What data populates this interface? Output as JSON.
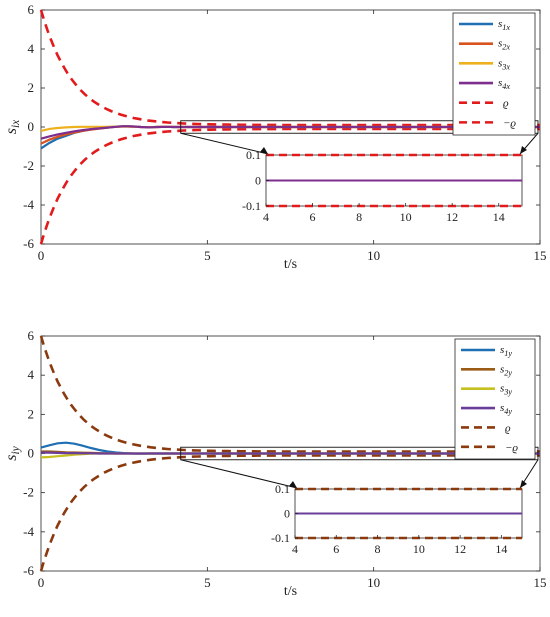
{
  "chart_data": [
    {
      "type": "line",
      "ylabel": "s_ix",
      "xlabel": "t/s",
      "xlim": [
        0,
        15
      ],
      "ylim": [
        -6,
        6
      ],
      "xticks": [
        "0",
        "5",
        "10",
        "15"
      ],
      "yticks": [
        "-6",
        "-4",
        "-2",
        "0",
        "2",
        "4",
        "6"
      ],
      "legend_position": "top-right",
      "x": [
        0,
        0.25,
        0.5,
        0.75,
        1,
        1.25,
        1.5,
        1.75,
        2,
        2.25,
        2.5,
        2.75,
        3,
        3.25,
        3.5,
        3.75,
        4,
        4.5,
        5,
        6,
        8,
        10,
        12,
        15
      ],
      "series": [
        {
          "name": "s1x",
          "values": [
            -1.1,
            -0.82,
            -0.6,
            -0.45,
            -0.3,
            -0.2,
            -0.12,
            -0.06,
            -0.02,
            0.02,
            0.04,
            0.02,
            0.0,
            -0.01,
            0.0,
            0.01,
            0.0,
            0.0,
            0.0,
            0.0,
            0.0,
            0.0,
            0.0,
            0.0
          ],
          "color": "#1f6fb4"
        },
        {
          "name": "s2x",
          "values": [
            -0.85,
            -0.65,
            -0.5,
            -0.38,
            -0.28,
            -0.2,
            -0.14,
            -0.08,
            -0.03,
            0.01,
            0.03,
            0.02,
            0.0,
            -0.01,
            0.0,
            0.01,
            0.0,
            0.0,
            0.0,
            0.0,
            0.0,
            0.0,
            0.0,
            0.0
          ],
          "color": "#d9531e"
        },
        {
          "name": "s3x",
          "values": [
            -0.2,
            -0.1,
            -0.05,
            -0.02,
            0.0,
            0.01,
            0.01,
            0.01,
            0.01,
            0.02,
            0.03,
            0.02,
            0.0,
            -0.01,
            0.0,
            0.01,
            0.0,
            0.0,
            0.0,
            0.0,
            0.0,
            0.0,
            0.0,
            0.0
          ],
          "color": "#edb120"
        },
        {
          "name": "s4x",
          "values": [
            -0.6,
            -0.48,
            -0.38,
            -0.3,
            -0.22,
            -0.16,
            -0.11,
            -0.07,
            -0.03,
            0.01,
            0.04,
            0.03,
            0.0,
            -0.02,
            0.0,
            0.01,
            0.0,
            0.0,
            0.0,
            0.0,
            0.0,
            0.0,
            0.0,
            0.0
          ],
          "color": "#7e2f8e"
        }
      ],
      "bound": {
        "name_upper": "ϱ",
        "name_lower": "−ϱ",
        "rho0": 6,
        "rho_inf": 0.1,
        "decay": 1.0,
        "color": "#e31a1c"
      },
      "inset": {
        "xlim": [
          4,
          15
        ],
        "ylim": [
          -0.1,
          0.1
        ],
        "xticks": [
          "4",
          "6",
          "8",
          "10",
          "12",
          "14"
        ],
        "yticks": [
          "-0.1",
          "0",
          "0.1"
        ],
        "curve_color": "#7e2f8e"
      }
    },
    {
      "type": "line",
      "ylabel": "s_iy",
      "xlabel": "t/s",
      "xlim": [
        0,
        15
      ],
      "ylim": [
        -6,
        6
      ],
      "xticks": [
        "0",
        "5",
        "10",
        "15"
      ],
      "yticks": [
        "-6",
        "-4",
        "-2",
        "0",
        "2",
        "4",
        "6"
      ],
      "legend_position": "top-right",
      "x": [
        0,
        0.25,
        0.5,
        0.75,
        1,
        1.25,
        1.5,
        1.75,
        2,
        2.25,
        2.5,
        2.75,
        3,
        3.25,
        3.5,
        3.75,
        4,
        4.5,
        5,
        6,
        8,
        10,
        12,
        15
      ],
      "series": [
        {
          "name": "s1y",
          "values": [
            0.3,
            0.42,
            0.52,
            0.55,
            0.5,
            0.4,
            0.28,
            0.18,
            0.1,
            0.05,
            0.02,
            0.0,
            -0.01,
            0.0,
            0.0,
            0.0,
            0.0,
            0.0,
            0.0,
            0.0,
            0.0,
            0.0,
            0.0,
            0.0
          ],
          "color": "#1f6fb4"
        },
        {
          "name": "s2y",
          "values": [
            0.1,
            0.1,
            0.08,
            0.06,
            0.05,
            0.04,
            0.03,
            0.02,
            0.01,
            0.0,
            0.0,
            0.0,
            0.0,
            0.0,
            0.0,
            0.0,
            0.0,
            0.0,
            0.0,
            0.0,
            0.0,
            0.0,
            0.0,
            0.0
          ],
          "color": "#9a5b14"
        },
        {
          "name": "s3y",
          "values": [
            -0.2,
            -0.18,
            -0.14,
            -0.1,
            -0.06,
            -0.03,
            -0.01,
            0.0,
            0.0,
            0.0,
            0.0,
            0.0,
            0.0,
            0.0,
            0.0,
            0.0,
            0.0,
            0.0,
            0.0,
            0.0,
            0.0,
            0.0,
            0.0,
            0.0
          ],
          "color": "#c8c020"
        },
        {
          "name": "s4y",
          "values": [
            0.05,
            0.04,
            0.03,
            0.02,
            0.02,
            0.01,
            0.01,
            0.0,
            0.0,
            0.0,
            0.0,
            0.0,
            0.0,
            0.0,
            0.0,
            0.0,
            0.0,
            0.0,
            0.0,
            0.0,
            0.0,
            0.0,
            0.0,
            0.0
          ],
          "color": "#6a3d9a"
        }
      ],
      "bound": {
        "name_upper": "ϱ",
        "name_lower": "−ϱ",
        "rho0": 6,
        "rho_inf": 0.1,
        "decay": 1.0,
        "color": "#8b3a0e"
      },
      "inset": {
        "xlim": [
          4,
          15
        ],
        "ylim": [
          -0.1,
          0.1
        ],
        "xticks": [
          "4",
          "6",
          "8",
          "10",
          "12",
          "14"
        ],
        "yticks": [
          "-0.1",
          "0",
          "0.1"
        ],
        "curve_color": "#6a3d9a"
      }
    }
  ]
}
